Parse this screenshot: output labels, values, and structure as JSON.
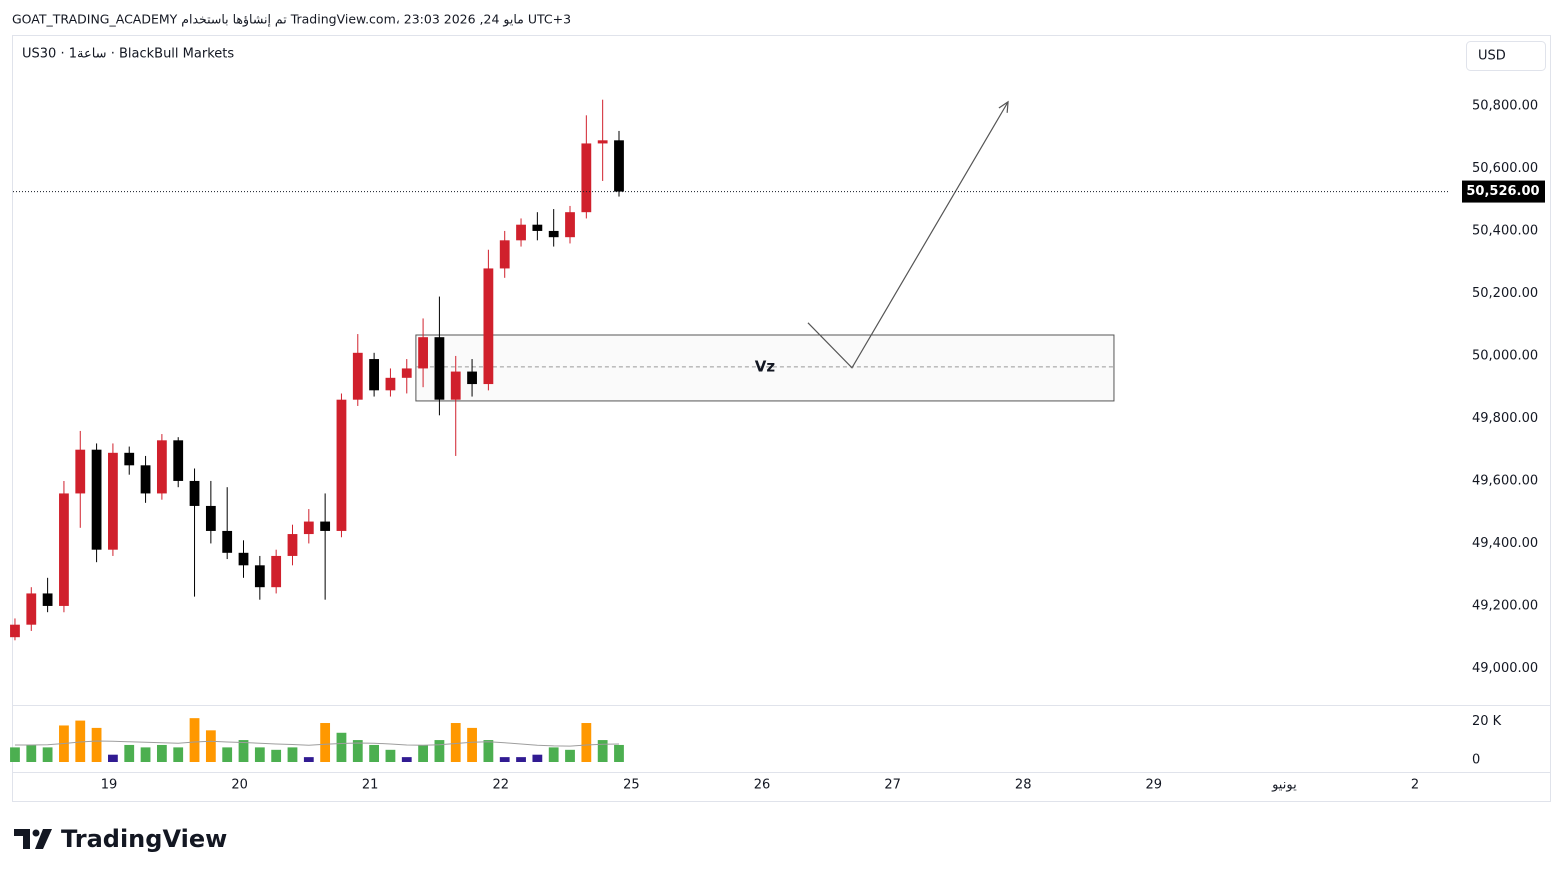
{
  "header": {
    "caption": "GOAT_TRADING_ACADEMY تم إنشاؤها باستخدام TradingView.com، 23:03 2026 ,24 مايو UTC+3",
    "symbol": "US30 · 1ساعة · BlackBull Markets",
    "currency": "USD",
    "brand": "TradingView"
  },
  "chart_data": {
    "type": "candlestick",
    "x": [
      -0.72,
      -0.595,
      -0.47,
      -0.345,
      -0.22,
      -0.095,
      0.03,
      0.155,
      0.28,
      0.405,
      0.53,
      0.655,
      0.78,
      0.905,
      1.03,
      1.155,
      1.28,
      1.405,
      1.53,
      1.655,
      1.78,
      1.905,
      2.03,
      2.155,
      2.28,
      2.405,
      2.53,
      2.655,
      2.78,
      2.905,
      3.03,
      3.155,
      3.28,
      3.405,
      3.53,
      3.655,
      3.78,
      3.905
    ],
    "open": [
      49100,
      49140,
      49240,
      49200,
      49560,
      49700,
      49380,
      49690,
      49650,
      49560,
      49730,
      49600,
      49520,
      49440,
      49370,
      49330,
      49260,
      49360,
      49430,
      49470,
      49440,
      49860,
      49990,
      49890,
      49930,
      49960,
      50060,
      49860,
      49950,
      49910,
      50280,
      50370,
      50420,
      50400,
      50380,
      50460,
      50680,
      50690
    ],
    "high": [
      49160,
      49260,
      49290,
      49600,
      49760,
      49720,
      49720,
      49710,
      49680,
      49750,
      49740,
      49640,
      49600,
      49580,
      49410,
      49360,
      49380,
      49460,
      49510,
      49560,
      49880,
      50070,
      50010,
      49960,
      49990,
      50120,
      50190,
      50000,
      49990,
      50340,
      50400,
      50440,
      50460,
      50470,
      50480,
      50770,
      50820,
      50720
    ],
    "low": [
      49090,
      49120,
      49180,
      49180,
      49450,
      49340,
      49360,
      49620,
      49530,
      49540,
      49580,
      49230,
      49400,
      49350,
      49290,
      49220,
      49240,
      49330,
      49400,
      49220,
      49420,
      49840,
      49870,
      49870,
      49880,
      49900,
      49810,
      49680,
      49870,
      49890,
      50250,
      50350,
      50370,
      50350,
      50360,
      50440,
      50560,
      50510
    ],
    "close": [
      49140,
      49240,
      49200,
      49560,
      49700,
      49380,
      49690,
      49650,
      49560,
      49730,
      49600,
      49520,
      49440,
      49370,
      49330,
      49260,
      49360,
      49430,
      49470,
      49440,
      49860,
      50010,
      49890,
      49930,
      49960,
      50060,
      49860,
      49950,
      49910,
      50280,
      50370,
      50420,
      50400,
      50380,
      50460,
      50680,
      50690,
      50526
    ],
    "up_color": "#d0202c",
    "down_color": "#000000",
    "xlim": [
      -0.735,
      10.268
    ],
    "xticks": [
      {
        "value": 0,
        "label": "19"
      },
      {
        "value": 1,
        "label": "20"
      },
      {
        "value": 2,
        "label": "21"
      },
      {
        "value": 3,
        "label": "22"
      },
      {
        "value": 4,
        "label": "25"
      },
      {
        "value": 5,
        "label": "26"
      },
      {
        "value": 6,
        "label": "27"
      },
      {
        "value": 7,
        "label": "28"
      },
      {
        "value": 8,
        "label": "29"
      },
      {
        "value": 9,
        "label": "يونيو"
      },
      {
        "value": 10,
        "label": "2"
      }
    ],
    "ylim": [
      48883,
      51027
    ],
    "yticks": [
      {
        "value": 49000,
        "label": "49,000.00"
      },
      {
        "value": 49200,
        "label": "49,200.00"
      },
      {
        "value": 49400,
        "label": "49,400.00"
      },
      {
        "value": 49600,
        "label": "49,600.00"
      },
      {
        "value": 49800,
        "label": "49,800.00"
      },
      {
        "value": 50000,
        "label": "50,000.00"
      },
      {
        "value": 50200,
        "label": "50,200.00"
      },
      {
        "value": 50400,
        "label": "50,400.00"
      },
      {
        "value": 50600,
        "label": "50,600.00"
      },
      {
        "value": 50800,
        "label": "50,800.00"
      }
    ],
    "last_price": {
      "value": 50526,
      "label": "50,526.00"
    },
    "volume": {
      "values": [
        6000,
        7000,
        6000,
        15000,
        17000,
        14000,
        3000,
        7000,
        6000,
        7000,
        6000,
        18000,
        13000,
        6000,
        9000,
        6000,
        5000,
        6000,
        2000,
        16000,
        12000,
        9000,
        7000,
        5000,
        2000,
        7000,
        9000,
        16000,
        14000,
        9000,
        2000,
        2000,
        3000,
        6000,
        5000,
        16000,
        9000,
        7000
      ],
      "colors": [
        "#4caf50",
        "#4caf50",
        "#4caf50",
        "#ff9800",
        "#ff9800",
        "#ff9800",
        "#311b92",
        "#4caf50",
        "#4caf50",
        "#4caf50",
        "#4caf50",
        "#ff9800",
        "#ff9800",
        "#4caf50",
        "#4caf50",
        "#4caf50",
        "#4caf50",
        "#4caf50",
        "#311b92",
        "#ff9800",
        "#4caf50",
        "#4caf50",
        "#4caf50",
        "#4caf50",
        "#311b92",
        "#4caf50",
        "#4caf50",
        "#ff9800",
        "#ff9800",
        "#4caf50",
        "#311b92",
        "#311b92",
        "#311b92",
        "#4caf50",
        "#4caf50",
        "#ff9800",
        "#4caf50",
        "#4caf50"
      ],
      "ma": [
        7000,
        7000,
        7100,
        7600,
        8200,
        8600,
        8500,
        8300,
        8100,
        7900,
        7700,
        8200,
        8500,
        8200,
        8000,
        7700,
        7400,
        7200,
        6900,
        7300,
        7600,
        7800,
        7700,
        7400,
        7000,
        6900,
        7100,
        7600,
        8100,
        8300,
        7900,
        7400,
        6900,
        6600,
        6500,
        7000,
        7300,
        7400
      ],
      "ma_color": "#9e9e9e",
      "ylim": [
        0,
        23400
      ],
      "yticks": [
        0,
        {
          "value": 20000,
          "label": "20 K"
        }
      ]
    },
    "annotations": {
      "zone": {
        "x": [
          2.35,
          7.695
        ],
        "y": [
          49856,
          50067
        ],
        "mid": 49965,
        "label": "Vz"
      },
      "arrow": {
        "x": [
          5.352,
          5.689,
          6.884
        ],
        "y": [
          50106,
          49962,
          50813
        ]
      }
    }
  }
}
